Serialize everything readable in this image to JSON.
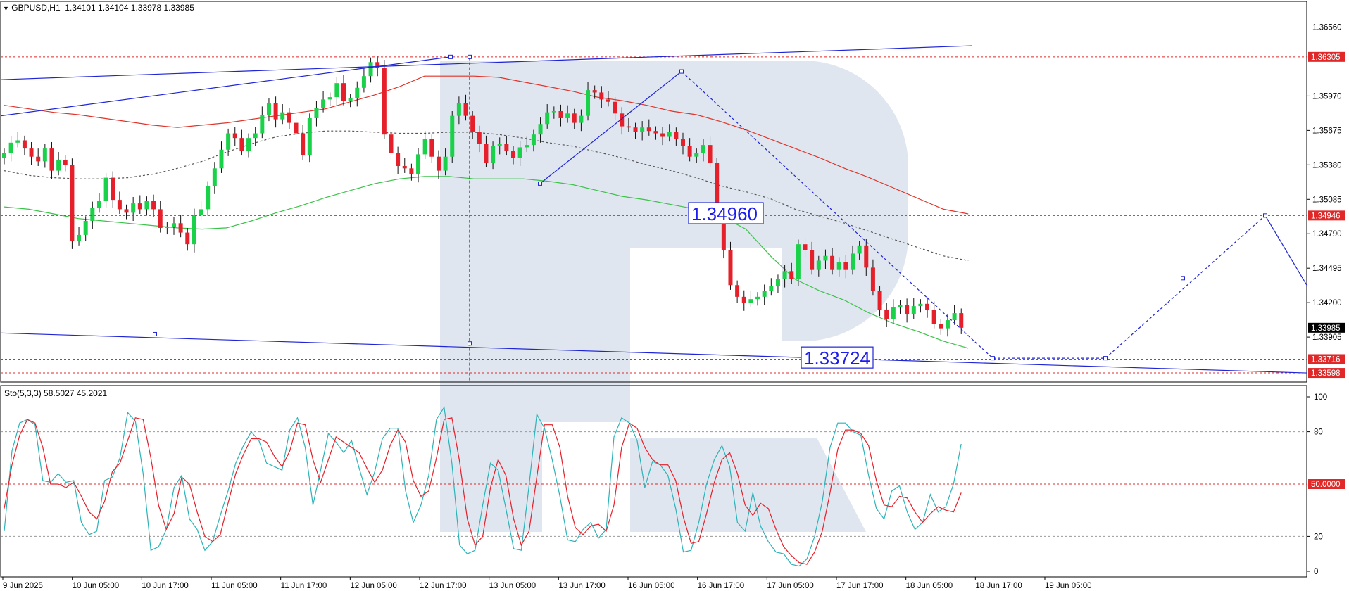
{
  "header": {
    "symbol": "GBPUSD,H1",
    "open": "1.34101",
    "high": "1.34104",
    "low": "1.33978",
    "close": "1.33985"
  },
  "indicator": {
    "name": "Sto(5,3,3)",
    "main": "58.5027",
    "signal": "45.2021"
  },
  "colors": {
    "bull": "#19d24a",
    "bear": "#e5202a",
    "ma_red": "#e0352b",
    "ma_green": "#3cc24a",
    "dotted": "#555555",
    "trend": "#1f25d6",
    "level": "#e02828",
    "sto_main": "#2bb3b8",
    "sto_signal": "#e5202a",
    "watermark": "#dfe6ef",
    "current": "#000000"
  },
  "chart_data": [
    {
      "type": "candlestick",
      "title": "GBPUSD,H1",
      "ylim": [
        1.3352,
        1.3678
      ],
      "y_ticks": [
        "1.36560",
        "1.36305",
        "1.35970",
        "1.35675",
        "1.35380",
        "1.35085",
        "1.34946",
        "1.34790",
        "1.34495",
        "1.34200",
        "1.33985",
        "1.33905",
        "1.33716",
        "1.33598"
      ],
      "x_ticks": [
        "9 Jun 2025",
        "10 Jun 05:00",
        "10 Jun 17:00",
        "11 Jun 05:00",
        "11 Jun 17:00",
        "12 Jun 05:00",
        "12 Jun 17:00",
        "13 Jun 05:00",
        "13 Jun 17:00",
        "16 Jun 05:00",
        "16 Jun 17:00",
        "17 Jun 05:00",
        "17 Jun 17:00",
        "18 Jun 05:00",
        "18 Jun 17:00",
        "19 Jun 05:00"
      ],
      "closes": [
        1.3548,
        1.3557,
        1.3559,
        1.3552,
        1.3545,
        1.3541,
        1.3552,
        1.3533,
        1.3542,
        1.3538,
        1.3473,
        1.3478,
        1.349,
        1.3501,
        1.3507,
        1.3527,
        1.3508,
        1.35,
        1.3497,
        1.3505,
        1.35,
        1.3507,
        1.35,
        1.3484,
        1.3485,
        1.3488,
        1.348,
        1.347,
        1.3495,
        1.35,
        1.352,
        1.3535,
        1.3551,
        1.3565,
        1.3561,
        1.355,
        1.3561,
        1.3565,
        1.3581,
        1.3591,
        1.3577,
        1.3583,
        1.3574,
        1.3565,
        1.3546,
        1.3578,
        1.3587,
        1.3594,
        1.3596,
        1.3608,
        1.3593,
        1.3595,
        1.3604,
        1.3614,
        1.3626,
        1.3621,
        1.3564,
        1.3548,
        1.3537,
        1.3535,
        1.353,
        1.3547,
        1.356,
        1.3545,
        1.3533,
        1.3545,
        1.358,
        1.3591,
        1.358,
        1.3566,
        1.3556,
        1.354,
        1.3554,
        1.3556,
        1.355,
        1.3544,
        1.3553,
        1.3555,
        1.3564,
        1.3573,
        1.3583,
        1.3584,
        1.3578,
        1.3582,
        1.3574,
        1.358,
        1.3602,
        1.36,
        1.3594,
        1.3592,
        1.3582,
        1.3571,
        1.357,
        1.3566,
        1.357,
        1.3567,
        1.3565,
        1.3562,
        1.3566,
        1.356,
        1.3554,
        1.3545,
        1.3548,
        1.3555,
        1.354,
        1.3497,
        1.3465,
        1.3435,
        1.3425,
        1.342,
        1.3423,
        1.3425,
        1.343,
        1.3434,
        1.344,
        1.3447,
        1.344,
        1.347,
        1.3465,
        1.3448,
        1.3456,
        1.346,
        1.3448,
        1.3455,
        1.3448,
        1.3462,
        1.3469,
        1.345,
        1.343,
        1.3414,
        1.3406,
        1.3416,
        1.3418,
        1.341,
        1.3417,
        1.3419,
        1.3414,
        1.3402,
        1.3398,
        1.3405,
        1.3411,
        1.33985
      ],
      "moving_averages": [
        {
          "values": [
            1.3589,
            1.3586,
            1.3583,
            1.3581,
            1.3578,
            1.3575,
            1.3572,
            1.357,
            1.3572,
            1.3574,
            1.3577,
            1.358,
            1.3583,
            1.3586,
            1.3592,
            1.3598,
            1.3605,
            1.3614,
            1.3614,
            1.3614,
            1.3613,
            1.3609,
            1.3605,
            1.3601,
            1.3596,
            1.3593,
            1.3589,
            1.3584,
            1.3581,
            1.3575,
            1.3568,
            1.356,
            1.3552,
            1.3544,
            1.3535,
            1.3527,
            1.3518,
            1.3509,
            1.35,
            1.3496
          ]
        },
        {
          "values": [
            1.3533,
            1.3529,
            1.3527,
            1.3526,
            1.3526,
            1.3527,
            1.353,
            1.3535,
            1.3541,
            1.3549,
            1.3556,
            1.3562,
            1.3565,
            1.3567,
            1.3567,
            1.3566,
            1.3565,
            1.3565,
            1.3566,
            1.3566,
            1.3564,
            1.3561,
            1.3557,
            1.3554,
            1.3549,
            1.3544,
            1.3538,
            1.3533,
            1.3527,
            1.352,
            1.3515,
            1.3509,
            1.35,
            1.3494,
            1.3488,
            1.3481,
            1.3474,
            1.3467,
            1.346,
            1.3456
          ]
        },
        {
          "values": [
            1.3502,
            1.35,
            1.3496,
            1.3492,
            1.349,
            1.3488,
            1.3486,
            1.3484,
            1.3483,
            1.3484,
            1.349,
            1.3497,
            1.3503,
            1.351,
            1.3516,
            1.3522,
            1.3526,
            1.3528,
            1.3528,
            1.3526,
            1.3526,
            1.3526,
            1.3524,
            1.3521,
            1.3516,
            1.3511,
            1.3508,
            1.3504,
            1.35,
            1.3494,
            1.3483,
            1.346,
            1.344,
            1.343,
            1.3422,
            1.3411,
            1.3402,
            1.3395,
            1.3387,
            1.3381
          ]
        }
      ],
      "levels": [
        1.36305,
        1.34946,
        1.33716,
        1.33598
      ],
      "current_price": "1.33985",
      "level_labels": [
        "1.36305",
        "1.34946",
        "1.33716",
        "1.33598"
      ],
      "annotations": [
        {
          "text": "1.34960",
          "value": 1.3496
        },
        {
          "text": "1.33724",
          "value": 1.33724
        }
      ]
    },
    {
      "type": "line",
      "title": "Sto(5,3,3)",
      "ylim": [
        0,
        100
      ],
      "y_ticks": [
        "100",
        "80",
        "20",
        "0"
      ],
      "level_label": "50.0000",
      "levels": [
        80,
        50,
        20
      ],
      "series": [
        {
          "values": [
            23,
            69,
            85,
            87,
            84,
            52,
            51,
            56,
            51,
            52,
            28,
            21,
            23,
            52,
            54,
            65,
            91,
            86,
            56,
            12,
            14,
            24,
            48,
            55,
            30,
            24,
            12,
            17,
            32,
            46,
            62,
            72,
            80,
            75,
            62,
            60,
            58,
            81,
            88,
            71,
            38,
            58,
            79,
            74,
            68,
            75,
            59,
            44,
            57,
            76,
            82,
            82,
            46,
            28,
            38,
            55,
            87,
            94,
            62,
            15,
            10,
            12,
            38,
            62,
            58,
            36,
            13,
            12,
            49,
            90,
            82,
            64,
            43,
            18,
            17,
            24,
            28,
            19,
            24,
            77,
            88,
            85,
            75,
            48,
            63,
            61,
            55,
            36,
            11,
            12,
            28,
            50,
            64,
            72,
            60,
            28,
            23,
            45,
            26,
            17,
            11,
            10,
            4,
            3,
            7,
            20,
            40,
            71,
            85,
            85,
            80,
            78,
            55,
            36,
            30,
            46,
            49,
            34,
            24,
            28,
            44,
            34,
            37,
            50,
            73
          ]
        },
        {
          "values": [
            36,
            61,
            78,
            87,
            85,
            71,
            50,
            50,
            48,
            51,
            43,
            34,
            30,
            40,
            57,
            62,
            75,
            88,
            87,
            65,
            38,
            24,
            33,
            54,
            50,
            34,
            20,
            17,
            21,
            39,
            56,
            67,
            76,
            76,
            74,
            66,
            60,
            69,
            85,
            84,
            64,
            51,
            64,
            77,
            74,
            71,
            68,
            59,
            51,
            58,
            72,
            81,
            74,
            52,
            43,
            46,
            65,
            87,
            88,
            63,
            30,
            15,
            20,
            48,
            64,
            55,
            30,
            15,
            23,
            54,
            84,
            84,
            71,
            43,
            25,
            21,
            26,
            27,
            23,
            38,
            71,
            85,
            82,
            71,
            64,
            61,
            61,
            52,
            31,
            16,
            17,
            33,
            51,
            64,
            68,
            56,
            38,
            32,
            39,
            36,
            24,
            14,
            9,
            5,
            4,
            11,
            23,
            45,
            70,
            81,
            81,
            79,
            72,
            52,
            38,
            37,
            43,
            42,
            34,
            28,
            33,
            37,
            35,
            34,
            45
          ]
        }
      ]
    }
  ]
}
